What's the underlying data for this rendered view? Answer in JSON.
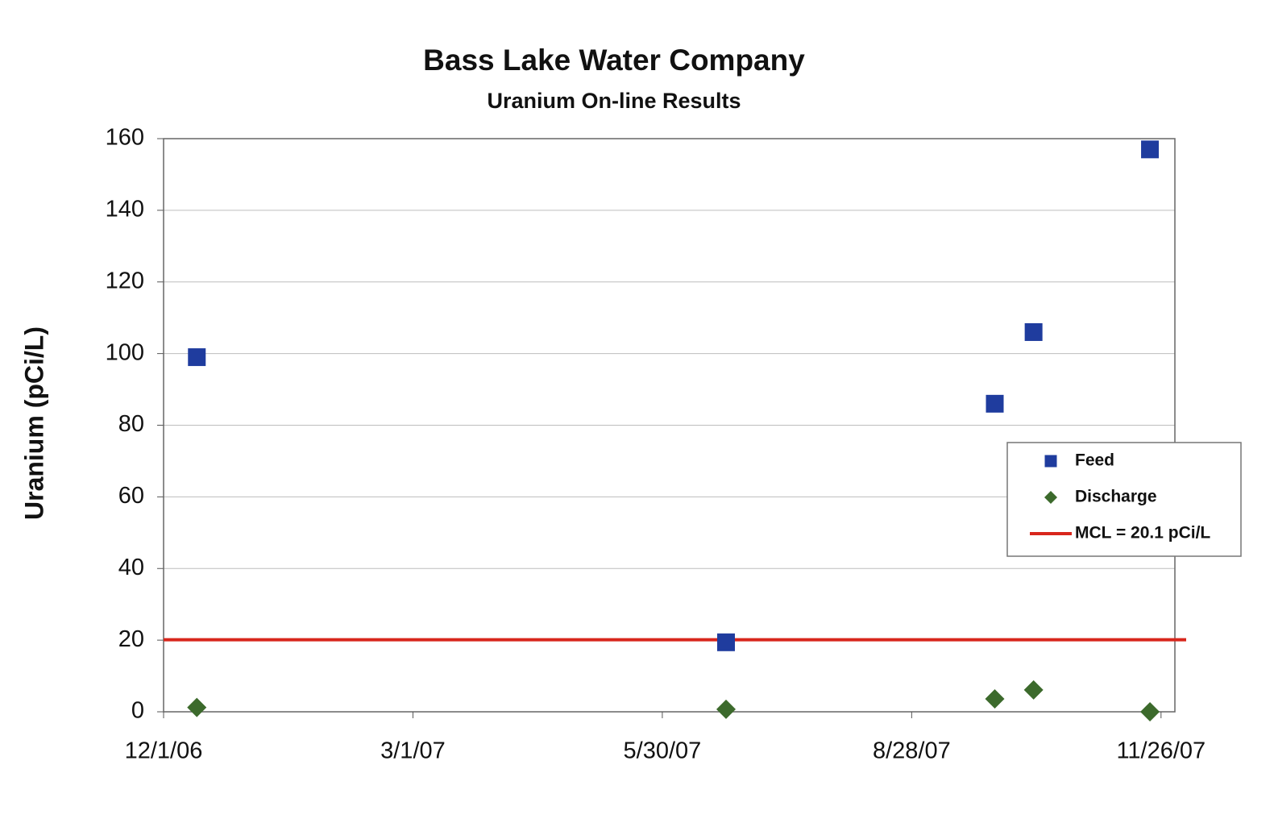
{
  "chart_data": {
    "type": "scatter",
    "title": "Bass Lake Water Company",
    "subtitle": "Uranium On-line Results",
    "y_label": "Uranium (pCi/L)",
    "xlim": [
      "2006-12-01",
      "2007-12-01"
    ],
    "xticks": [
      {
        "value": "2006-12-01",
        "label": "12/1/06"
      },
      {
        "value": "2007-03-01",
        "label": "3/1/07"
      },
      {
        "value": "2007-05-30",
        "label": "5/30/07"
      },
      {
        "value": "2007-08-28",
        "label": "8/28/07"
      },
      {
        "value": "2007-11-26",
        "label": "11/26/07"
      }
    ],
    "ylim": [
      0,
      160
    ],
    "yticks": [
      0,
      20,
      40,
      60,
      80,
      100,
      120,
      140,
      160
    ],
    "grid": true,
    "legend": "right",
    "x": [
      "2006-12-13",
      "2007-06-22",
      "2007-09-27",
      "2007-10-11",
      "2007-11-22"
    ],
    "series": [
      {
        "name": "Feed",
        "color": "#1f3c9e",
        "marker": "square",
        "values": [
          99,
          19.4,
          86,
          106,
          157
        ]
      },
      {
        "name": "Discharge",
        "color": "#3c6a2c",
        "marker": "diamond",
        "values": [
          1.2,
          0.7,
          3.6,
          6.1,
          0
        ]
      }
    ],
    "reference_line": {
      "name": "MCL = 20.1 pCi/L",
      "value": 20.1,
      "color": "#d8261c"
    }
  }
}
